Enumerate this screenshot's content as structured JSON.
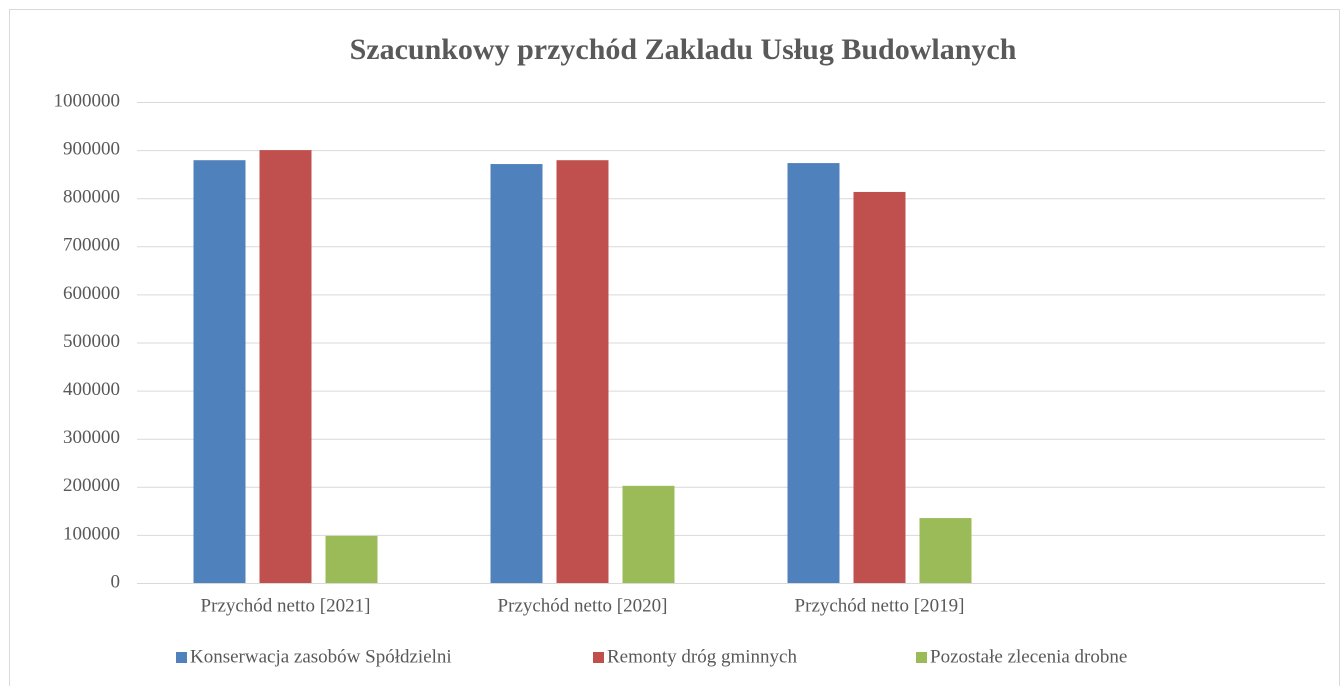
{
  "chart_data": {
    "type": "bar",
    "title": "Szacunkowy przychód Zakladu Usług Budowlanych",
    "categories": [
      "Przychód netto [2021]",
      "Przychód netto [2020]",
      "Przychód netto [2019]",
      null
    ],
    "series": [
      {
        "name": "Konserwacja zasobów Spółdzielni",
        "color": "#4f81bd",
        "values": [
          879000,
          871000,
          873000,
          null
        ]
      },
      {
        "name": "Remonty dróg gminnych",
        "color": "#c0504d",
        "values": [
          900000,
          879000,
          813000,
          null
        ]
      },
      {
        "name": "Pozostałe zlecenia drobne",
        "color": "#9bbb59",
        "values": [
          98000,
          202000,
          135000,
          null
        ]
      }
    ],
    "ylim": [
      0,
      1000000
    ],
    "yticks": [
      0,
      100000,
      200000,
      300000,
      400000,
      500000,
      600000,
      700000,
      800000,
      900000,
      1000000
    ],
    "grid": true,
    "legend": "bottom"
  }
}
